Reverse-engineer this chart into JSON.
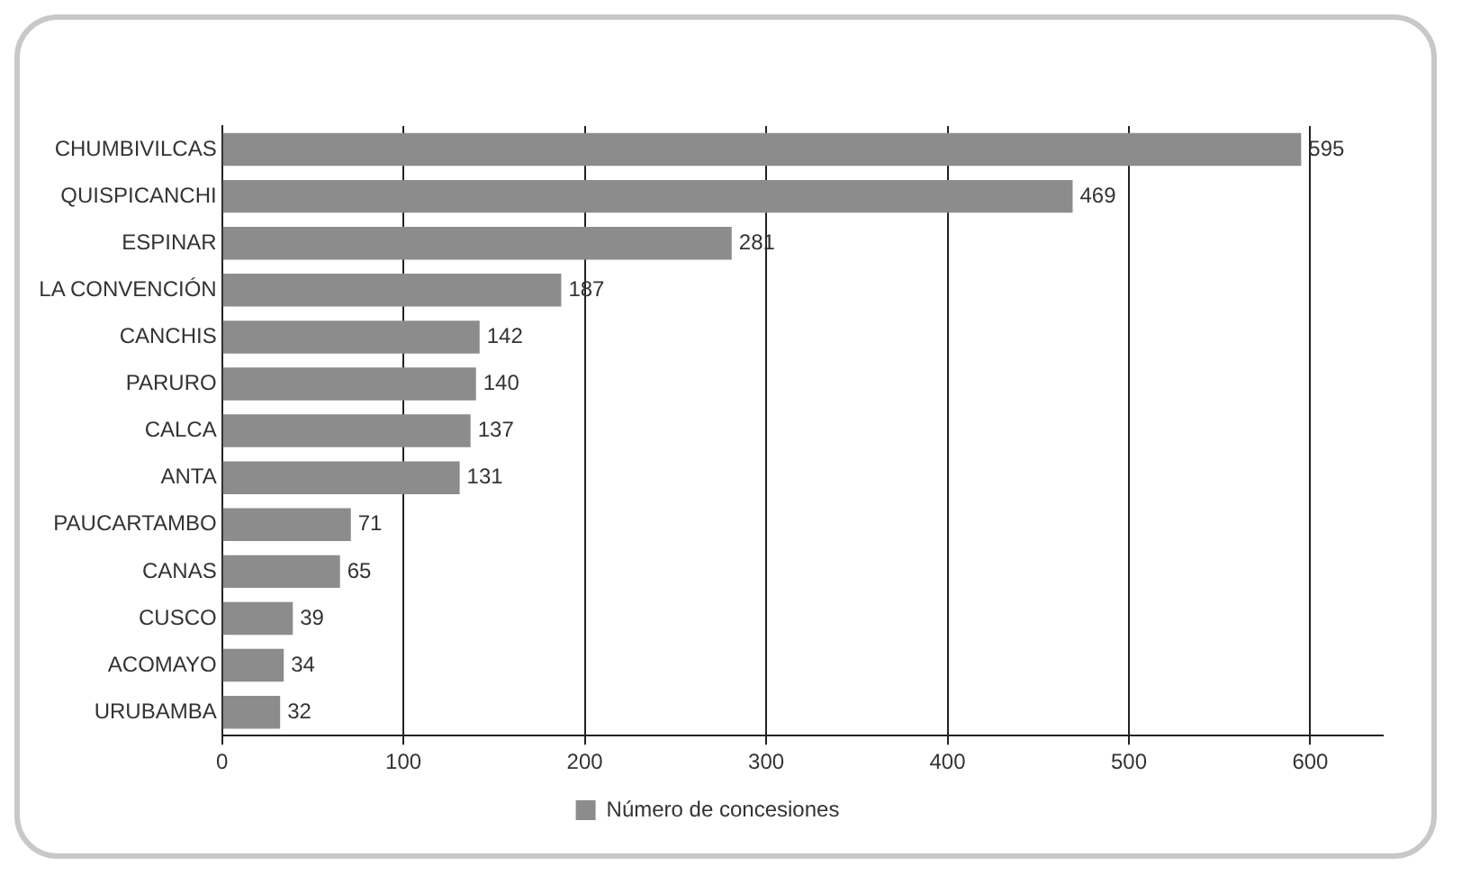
{
  "chart_data": {
    "type": "bar",
    "orientation": "horizontal",
    "categories": [
      "CHUMBIVILCAS",
      "QUISPICANCHI",
      "ESPINAR",
      "LA CONVENCIÓN",
      "CANCHIS",
      "PARURO",
      "CALCA",
      "ANTA",
      "PAUCARTAMBO",
      "CANAS",
      "CUSCO",
      "ACOMAYO",
      "URUBAMBA"
    ],
    "series": [
      {
        "name": "Número de concesiones",
        "color": "#8c8c8c",
        "values": [
          595,
          469,
          281,
          187,
          142,
          140,
          137,
          131,
          71,
          65,
          39,
          34,
          32
        ]
      }
    ],
    "xlim": [
      0,
      640
    ],
    "xticks": [
      0,
      100,
      200,
      300,
      400,
      500,
      600
    ],
    "grid": "x",
    "legend": "bottom",
    "data_labels": true
  }
}
